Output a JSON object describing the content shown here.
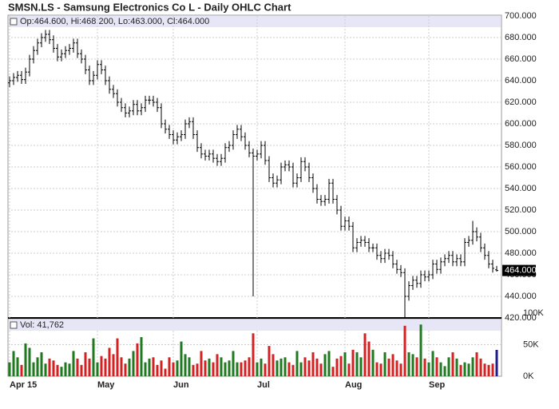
{
  "chart_data": {
    "type": "ohlc",
    "title": "SMSN.LS - Samsung Electronics Co L - Daily OHLC Chart",
    "info": "Op:464.600, Hi:468.200, Lo:463.000, Cl:464.000",
    "volume_info": "Vol: 41,762",
    "last_price_label": "464.000",
    "categories": [
      "Apr 15",
      null,
      null,
      null,
      null,
      null,
      null,
      null,
      null,
      null,
      null,
      null,
      null,
      null,
      null,
      null,
      null,
      null,
      null,
      null,
      null,
      null,
      "May",
      null,
      null,
      null,
      null,
      null,
      null,
      null,
      null,
      null,
      null,
      null,
      null,
      null,
      null,
      null,
      null,
      null,
      null,
      "Jun",
      null,
      null,
      null,
      null,
      null,
      null,
      null,
      null,
      null,
      null,
      null,
      null,
      null,
      null,
      null,
      null,
      null,
      null,
      null,
      null,
      "Jul",
      null,
      null,
      null,
      null,
      null,
      null,
      null,
      null,
      null,
      null,
      null,
      null,
      null,
      null,
      null,
      null,
      null,
      null,
      null,
      null,
      null,
      "Aug",
      null,
      null,
      null,
      null,
      null,
      null,
      null,
      null,
      null,
      null,
      null,
      null,
      null,
      null,
      null,
      null,
      null,
      null,
      null,
      null,
      "Sep",
      null,
      null,
      null,
      null,
      null,
      null,
      null,
      null,
      null,
      null,
      null,
      null,
      null,
      null,
      null,
      null,
      null
    ],
    "open": [
      638,
      640,
      643,
      645,
      641,
      648,
      660,
      668,
      675,
      680,
      683,
      678,
      670,
      662,
      665,
      668,
      670,
      675,
      665,
      660,
      650,
      640,
      645,
      655,
      650,
      640,
      632,
      628,
      620,
      615,
      610,
      612,
      618,
      612,
      615,
      622,
      622,
      620,
      615,
      600,
      595,
      590,
      585,
      588,
      590,
      600,
      602,
      590,
      578,
      572,
      570,
      572,
      568,
      565,
      568,
      578,
      580,
      590,
      595,
      588,
      580,
      573,
      570,
      572,
      580,
      566,
      550,
      545,
      548,
      560,
      562,
      560,
      545,
      550,
      565,
      560,
      550,
      540,
      530,
      528,
      530,
      545,
      530,
      520,
      505,
      510,
      505,
      485,
      490,
      492,
      490,
      485,
      485,
      478,
      475,
      480,
      478,
      470,
      465,
      462,
      440,
      450,
      455,
      452,
      460,
      458,
      460,
      470,
      465,
      472,
      475,
      478,
      472,
      475,
      472,
      490,
      492,
      500,
      495,
      485,
      478,
      470,
      464.6
    ],
    "high": [
      644,
      647,
      649,
      649,
      652,
      664,
      672,
      679,
      684,
      687,
      687,
      682,
      674,
      669,
      672,
      674,
      679,
      679,
      669,
      664,
      654,
      649,
      659,
      659,
      654,
      644,
      636,
      632,
      624,
      619,
      616,
      622,
      622,
      619,
      626,
      626,
      626,
      624,
      619,
      604,
      599,
      594,
      592,
      594,
      604,
      606,
      606,
      594,
      582,
      576,
      576,
      576,
      572,
      572,
      582,
      584,
      594,
      599,
      599,
      592,
      584,
      577,
      576,
      584,
      584,
      570,
      554,
      552,
      564,
      566,
      566,
      564,
      554,
      569,
      569,
      564,
      554,
      544,
      534,
      534,
      549,
      549,
      534,
      524,
      514,
      514,
      509,
      494,
      496,
      496,
      494,
      489,
      489,
      482,
      484,
      484,
      482,
      474,
      469,
      466,
      454,
      459,
      459,
      464,
      464,
      464,
      474,
      474,
      476,
      479,
      482,
      482,
      479,
      479,
      494,
      496,
      510,
      504,
      499,
      489,
      482,
      474,
      468.2
    ],
    "low": [
      634,
      636,
      639,
      637,
      637,
      644,
      656,
      664,
      671,
      676,
      674,
      666,
      658,
      658,
      661,
      664,
      666,
      661,
      656,
      646,
      636,
      636,
      641,
      646,
      636,
      628,
      624,
      616,
      611,
      606,
      606,
      608,
      608,
      608,
      611,
      618,
      616,
      611,
      596,
      591,
      586,
      581,
      581,
      584,
      586,
      596,
      586,
      574,
      568,
      566,
      566,
      564,
      561,
      561,
      564,
      574,
      576,
      586,
      584,
      576,
      569,
      440,
      566,
      568,
      562,
      546,
      541,
      541,
      544,
      556,
      556,
      541,
      541,
      546,
      556,
      546,
      536,
      526,
      524,
      524,
      526,
      526,
      516,
      501,
      501,
      501,
      481,
      481,
      486,
      486,
      481,
      481,
      474,
      471,
      471,
      474,
      466,
      461,
      458,
      420,
      436,
      446,
      448,
      448,
      454,
      454,
      456,
      461,
      461,
      468,
      471,
      468,
      468,
      468,
      468,
      486,
      488,
      491,
      481,
      474,
      466,
      462,
      463
    ],
    "close": [
      640,
      643,
      645,
      641,
      648,
      660,
      668,
      675,
      680,
      683,
      678,
      670,
      662,
      665,
      668,
      670,
      675,
      665,
      660,
      650,
      640,
      645,
      655,
      650,
      640,
      632,
      628,
      620,
      615,
      610,
      612,
      618,
      612,
      615,
      622,
      622,
      620,
      615,
      600,
      595,
      590,
      585,
      588,
      590,
      600,
      602,
      590,
      578,
      572,
      570,
      572,
      568,
      565,
      568,
      578,
      580,
      590,
      595,
      588,
      580,
      573,
      570,
      572,
      580,
      566,
      550,
      545,
      548,
      560,
      562,
      560,
      545,
      550,
      565,
      560,
      550,
      540,
      530,
      528,
      530,
      545,
      530,
      520,
      505,
      510,
      505,
      485,
      490,
      492,
      490,
      485,
      485,
      478,
      475,
      480,
      478,
      470,
      465,
      462,
      440,
      450,
      455,
      452,
      460,
      458,
      460,
      470,
      465,
      472,
      475,
      478,
      472,
      475,
      472,
      490,
      492,
      500,
      495,
      485,
      478,
      470,
      466,
      464
    ],
    "volume": [
      22000,
      40000,
      30000,
      18000,
      52000,
      45000,
      22000,
      30000,
      38000,
      20000,
      28000,
      25000,
      18000,
      15000,
      22000,
      20000,
      40000,
      28000,
      18000,
      38000,
      28000,
      60000,
      22000,
      32000,
      28000,
      45000,
      35000,
      60000,
      30000,
      20000,
      28000,
      40000,
      52000,
      62000,
      22000,
      28000,
      30000,
      18000,
      25000,
      12000,
      30000,
      22000,
      25000,
      55000,
      35000,
      30000,
      18000,
      20000,
      40000,
      25000,
      28000,
      22000,
      35000,
      30000,
      22000,
      25000,
      40000,
      22000,
      22000,
      25000,
      30000,
      68000,
      22000,
      28000,
      20000,
      48000,
      35000,
      25000,
      28000,
      30000,
      22000,
      18000,
      40000,
      22000,
      30000,
      25000,
      38000,
      28000,
      20000,
      35000,
      40000,
      15000,
      28000,
      32000,
      38000,
      20000,
      42000,
      38000,
      30000,
      68000,
      55000,
      42000,
      22000,
      20000,
      38000,
      28000,
      35000,
      25000,
      20000,
      80000,
      38000,
      35000,
      30000,
      82000,
      28000,
      22000,
      40000,
      30000,
      22000,
      16000,
      30000,
      38000,
      28000,
      18000,
      22000,
      20000,
      30000,
      38000,
      28000,
      20000,
      18000,
      20000,
      41762
    ],
    "up_color": "#1f7a1f",
    "down_color": "#d42020",
    "last_color": "#1c1c8a",
    "bar_color": "#000000",
    "ylim": [
      420,
      700
    ],
    "yticks": [
      {
        "value": 420,
        "label": "420.000"
      },
      {
        "value": 440,
        "label": "440.000"
      },
      {
        "value": 460,
        "label": "460.000"
      },
      {
        "value": 480,
        "label": "480.000"
      },
      {
        "value": 500,
        "label": "500.000"
      },
      {
        "value": 520,
        "label": "520.000"
      },
      {
        "value": 540,
        "label": "540.000"
      },
      {
        "value": 560,
        "label": "560.000"
      },
      {
        "value": 580,
        "label": "580.000"
      },
      {
        "value": 600,
        "label": "600.000"
      },
      {
        "value": 620,
        "label": "620.000"
      },
      {
        "value": 640,
        "label": "640.000"
      },
      {
        "value": 660,
        "label": "660.000"
      },
      {
        "value": 680,
        "label": "680.000"
      },
      {
        "value": 700,
        "label": "700.000"
      }
    ],
    "y2lim": [
      0,
      100000
    ],
    "y2ticks": [
      {
        "value": 0,
        "label": "0K"
      },
      {
        "value": 50000,
        "label": "50K"
      },
      {
        "value": 100000,
        "label": "100K"
      }
    ],
    "grid": true
  }
}
